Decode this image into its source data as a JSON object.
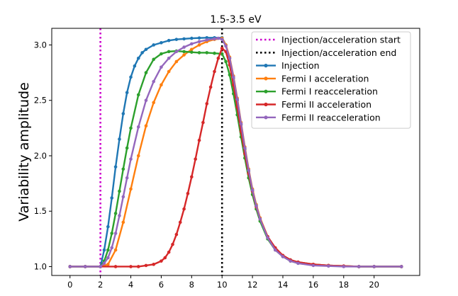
{
  "chart_data": {
    "type": "line",
    "title": "1.5-3.5 eV",
    "xlabel": "",
    "ylabel": "Variability amplitude",
    "xlim": [
      -1.2,
      23.0
    ],
    "ylim": [
      0.92,
      3.15
    ],
    "xticks": [
      0,
      2,
      4,
      6,
      8,
      10,
      12,
      14,
      16,
      18,
      20
    ],
    "yticks": [
      1.0,
      1.5,
      2.0,
      2.5,
      3.0
    ],
    "ytick_labels": [
      "1.0",
      "1.5",
      "2.0",
      "2.5",
      "3.0"
    ],
    "vlines": [
      {
        "name": "Injection/acceleration start",
        "x": 2.0,
        "color": "#cc00cc",
        "style": "dotted"
      },
      {
        "name": "Injection/acceleration end",
        "x": 10.0,
        "color": "#000000",
        "style": "dotted"
      }
    ],
    "series": [
      {
        "name": "Injection",
        "color": "#1f77b4",
        "x": [
          0,
          1,
          2,
          2.25,
          2.5,
          2.75,
          3,
          3.25,
          3.5,
          3.75,
          4,
          4.25,
          4.5,
          4.75,
          5,
          5.5,
          6,
          6.5,
          7,
          7.5,
          8,
          8.5,
          9,
          9.5,
          10,
          10.25,
          10.5,
          10.75,
          11,
          11.25,
          11.5,
          11.75,
          12,
          12.25,
          12.5,
          13,
          13.5,
          14,
          14.5,
          15,
          16,
          17,
          18,
          19,
          20,
          21.8
        ],
        "y": [
          1.0,
          1.0,
          1.0,
          1.15,
          1.36,
          1.62,
          1.9,
          2.15,
          2.38,
          2.57,
          2.71,
          2.81,
          2.88,
          2.93,
          2.96,
          3.0,
          3.02,
          3.04,
          3.05,
          3.055,
          3.06,
          3.063,
          3.065,
          3.065,
          3.065,
          3.0,
          2.88,
          2.7,
          2.5,
          2.28,
          2.06,
          1.86,
          1.69,
          1.55,
          1.43,
          1.27,
          1.16,
          1.1,
          1.06,
          1.04,
          1.02,
          1.01,
          1.005,
          1.0,
          1.0,
          1.0
        ]
      },
      {
        "name": "Fermi I acceleration",
        "color": "#ff7f0e",
        "x": [
          0,
          1,
          2,
          2.5,
          3,
          3.5,
          4,
          4.5,
          5,
          5.5,
          6,
          6.5,
          7,
          7.5,
          8,
          8.5,
          9,
          9.5,
          10,
          10.25,
          10.5,
          10.75,
          11,
          11.25,
          11.5,
          11.75,
          12,
          12.25,
          12.5,
          13,
          13.5,
          14,
          14.5,
          15,
          16,
          17,
          18,
          19,
          20,
          21.8
        ],
        "y": [
          1.0,
          1.0,
          1.0,
          1.02,
          1.15,
          1.4,
          1.7,
          2.0,
          2.27,
          2.48,
          2.64,
          2.76,
          2.85,
          2.91,
          2.96,
          3.0,
          3.03,
          3.05,
          3.06,
          3.0,
          2.89,
          2.72,
          2.52,
          2.3,
          2.08,
          1.88,
          1.7,
          1.56,
          1.44,
          1.27,
          1.16,
          1.1,
          1.06,
          1.04,
          1.02,
          1.01,
          1.005,
          1.0,
          1.0,
          1.0
        ]
      },
      {
        "name": "Fermi I reacceleration",
        "color": "#2ca02c",
        "x": [
          0,
          1,
          2,
          2.25,
          2.5,
          2.75,
          3,
          3.25,
          3.5,
          3.75,
          4,
          4.5,
          5,
          5.5,
          6,
          6.5,
          7,
          7.5,
          8,
          8.5,
          9,
          9.5,
          10,
          10.25,
          10.5,
          10.75,
          11,
          11.25,
          11.5,
          11.75,
          12,
          12.25,
          12.5,
          13,
          13.5,
          14,
          14.5,
          15,
          16,
          17,
          18,
          19,
          20,
          21.8
        ],
        "y": [
          1.0,
          1.0,
          1.0,
          1.05,
          1.15,
          1.3,
          1.48,
          1.68,
          1.88,
          2.07,
          2.25,
          2.55,
          2.75,
          2.87,
          2.92,
          2.94,
          2.945,
          2.94,
          2.935,
          2.93,
          2.93,
          2.925,
          2.92,
          2.85,
          2.73,
          2.56,
          2.37,
          2.17,
          1.98,
          1.8,
          1.65,
          1.52,
          1.41,
          1.25,
          1.15,
          1.09,
          1.05,
          1.03,
          1.015,
          1.007,
          1.003,
          1.0,
          1.0,
          1.0
        ]
      },
      {
        "name": "Fermi II acceleration",
        "color": "#d62728",
        "x": [
          0,
          1,
          2,
          3,
          4,
          4.5,
          5,
          5.5,
          6,
          6.25,
          6.5,
          6.75,
          7,
          7.25,
          7.5,
          7.75,
          8,
          8.25,
          8.5,
          8.75,
          9,
          9.25,
          9.5,
          9.75,
          10,
          10.25,
          10.5,
          10.75,
          11,
          11.25,
          11.5,
          11.75,
          12,
          12.25,
          12.5,
          13,
          13.5,
          14,
          14.5,
          15,
          16,
          17,
          18,
          19,
          20,
          21.8
        ],
        "y": [
          1.0,
          1.0,
          1.0,
          1.0,
          1.0,
          1.0,
          1.01,
          1.02,
          1.05,
          1.08,
          1.13,
          1.2,
          1.29,
          1.4,
          1.52,
          1.66,
          1.81,
          1.97,
          2.14,
          2.3,
          2.47,
          2.62,
          2.76,
          2.88,
          2.97,
          2.94,
          2.82,
          2.64,
          2.44,
          2.22,
          2.02,
          1.84,
          1.68,
          1.54,
          1.43,
          1.27,
          1.17,
          1.1,
          1.06,
          1.04,
          1.02,
          1.01,
          1.005,
          1.0,
          1.0,
          1.0
        ]
      },
      {
        "name": "Fermi II reacceleration",
        "color": "#9467bd",
        "x": [
          0,
          1,
          2,
          2.25,
          2.5,
          2.75,
          3,
          3.25,
          3.5,
          3.75,
          4,
          4.5,
          5,
          5.5,
          6,
          6.5,
          7,
          7.5,
          8,
          8.5,
          9,
          9.5,
          9.75,
          10,
          10.25,
          10.5,
          10.75,
          11,
          11.25,
          11.5,
          11.75,
          12,
          12.25,
          12.5,
          13,
          13.5,
          14,
          14.5,
          15,
          16,
          17,
          18,
          19,
          20,
          21.8
        ],
        "y": [
          1.0,
          1.0,
          1.0,
          1.03,
          1.08,
          1.17,
          1.3,
          1.46,
          1.63,
          1.8,
          1.97,
          2.26,
          2.5,
          2.67,
          2.8,
          2.88,
          2.94,
          2.98,
          3.01,
          3.03,
          3.045,
          3.055,
          3.06,
          3.05,
          2.99,
          2.88,
          2.71,
          2.51,
          2.29,
          2.07,
          1.87,
          1.69,
          1.55,
          1.43,
          1.26,
          1.15,
          1.09,
          1.05,
          1.03,
          1.01,
          1.005,
          1.0,
          1.0,
          1.0,
          1.0
        ]
      }
    ],
    "legend": {
      "position": "top-right",
      "entries": [
        {
          "label": "Injection/acceleration start",
          "color": "#cc00cc",
          "style": "dotted"
        },
        {
          "label": "Injection/acceleration end",
          "color": "#000000",
          "style": "dotted"
        },
        {
          "label": "Injection",
          "color": "#1f77b4",
          "style": "marker-line"
        },
        {
          "label": "Fermi I acceleration",
          "color": "#ff7f0e",
          "style": "marker-line"
        },
        {
          "label": "Fermi I reacceleration",
          "color": "#2ca02c",
          "style": "marker-line"
        },
        {
          "label": "Fermi II acceleration",
          "color": "#d62728",
          "style": "marker-line"
        },
        {
          "label": "Fermi II reacceleration",
          "color": "#9467bd",
          "style": "marker-line"
        }
      ]
    }
  }
}
